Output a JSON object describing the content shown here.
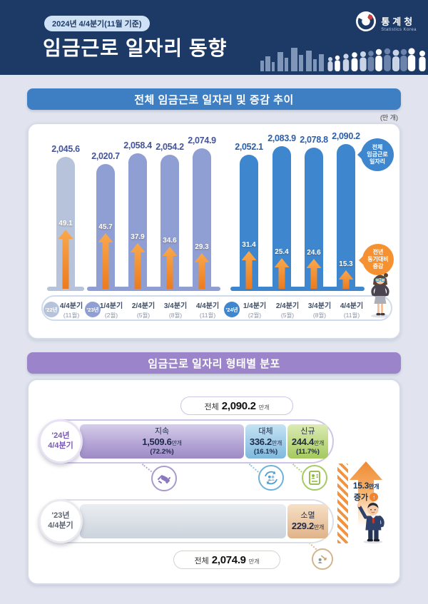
{
  "header": {
    "badge": "2024년 4/4분기(11월 기준)",
    "title": "임금근로 일자리 동향",
    "logo": {
      "name": "통계청",
      "subtitle": "Statistics Korea"
    },
    "colors": {
      "background": "#1d3a66",
      "badge_bg": "#cfe1f5"
    }
  },
  "section1": {
    "title": "전체 임금근로 일자리 및 증감 추이",
    "unit": "(만 개)",
    "total_bubble": {
      "line1": "전체",
      "line2": "임금근로",
      "line3": "일자리"
    },
    "change_bubble": {
      "line1": "전년",
      "line2": "동기대비",
      "line3": "증감"
    },
    "colors": {
      "header_bar": "#3e7ec2",
      "year22_bar": "#b7c3da",
      "year23_bar": "#8f9ed3",
      "year24_bar": "#3e86ce",
      "arrow_top": "#f9a84d",
      "arrow_bottom": "#ec7b1e",
      "label_light": "#44549b",
      "label_dark": "#2a5ea9"
    }
  },
  "chart_data": [
    {
      "type": "bar",
      "title": "전체 임금근로 일자리 및 증감 추이",
      "unit": "만 개",
      "legend_position": "right-bubbles",
      "categories": [
        {
          "year": "'22년",
          "quarter": "4/4분기",
          "month": "(11월)",
          "group": 0
        },
        {
          "year": "'23년",
          "quarter": "1/4분기",
          "month": "(2월)",
          "group": 1
        },
        {
          "quarter": "2/4분기",
          "month": "(5월)",
          "group": 1
        },
        {
          "quarter": "3/4분기",
          "month": "(8월)",
          "group": 1
        },
        {
          "quarter": "4/4분기",
          "month": "(11월)",
          "group": 1
        },
        {
          "year": "'24년",
          "quarter": "1/4분기",
          "month": "(2월)",
          "group": 2
        },
        {
          "quarter": "2/4분기",
          "month": "(5월)",
          "group": 2
        },
        {
          "quarter": "3/4분기",
          "month": "(8월)",
          "group": 2
        },
        {
          "quarter": "4/4분기",
          "month": "(11월)",
          "group": 2
        }
      ],
      "series": [
        {
          "name": "전체 임금근로 일자리",
          "values": [
            2045.6,
            2020.7,
            2058.4,
            2054.2,
            2074.9,
            2052.1,
            2083.9,
            2078.8,
            2090.2
          ],
          "labels": [
            "2,045.6",
            "2,020.7",
            "2,058.4",
            "2,054.2",
            "2,074.9",
            "2,052.1",
            "2,083.9",
            "2,078.8",
            "2,090.2"
          ]
        },
        {
          "name": "전년 동기대비 증감",
          "values": [
            49.1,
            45.7,
            37.9,
            34.6,
            29.3,
            31.4,
            25.4,
            24.6,
            15.3
          ],
          "labels": [
            "49.1",
            "45.7",
            "37.9",
            "34.6",
            "29.3",
            "31.4",
            "25.4",
            "24.6",
            "15.3"
          ]
        }
      ]
    },
    {
      "type": "bar",
      "subtype": "stacked-horizontal",
      "title": "임금근로 일자리 형태별 분포",
      "unit": "만개",
      "rows": [
        {
          "category": "'24년 4/4분기",
          "total": 2090.2,
          "segments": [
            {
              "name": "지속",
              "value": 1509.6,
              "share_pct": 72.2
            },
            {
              "name": "대체",
              "value": 336.2,
              "share_pct": 16.1
            },
            {
              "name": "신규",
              "value": 244.4,
              "share_pct": 11.7
            }
          ]
        },
        {
          "category": "'23년 4/4분기",
          "total": 2074.9,
          "segments": [
            {
              "name": "소멸",
              "value": 229.2
            }
          ]
        }
      ],
      "annotation": "15.3만개 증가"
    }
  ],
  "section2": {
    "title": "임금근로 일자리 형태별 분포",
    "total_current": {
      "label": "전체",
      "value": "2,090.2",
      "unit": "만개"
    },
    "total_previous": {
      "label": "전체",
      "value": "2,074.9",
      "unit": "만개"
    },
    "row_current": {
      "badge": {
        "line1": "'24년",
        "line2": "4/4분기"
      },
      "segments": [
        {
          "name": "지속",
          "value": "1,509.6",
          "unit": "만개",
          "share": "(72.2%)"
        },
        {
          "name": "대체",
          "value": "336.2",
          "unit": "만개",
          "share": "(16.1%)"
        },
        {
          "name": "신규",
          "value": "244.4",
          "unit": "만개",
          "share": "(11.7%)"
        }
      ]
    },
    "row_previous": {
      "badge": {
        "line1": "'23년",
        "line2": "4/4분기"
      },
      "segment": {
        "name": "소멸",
        "value": "229.2",
        "unit": "만개"
      }
    },
    "change": {
      "value": "15.3",
      "unit": "만개",
      "label": "증가"
    },
    "colors": {
      "header_bar": "#9b84c9",
      "persist": "#9d8ac5",
      "replace": "#7fb8dd",
      "new": "#a5c95e",
      "disappear": "#e0b389"
    }
  }
}
